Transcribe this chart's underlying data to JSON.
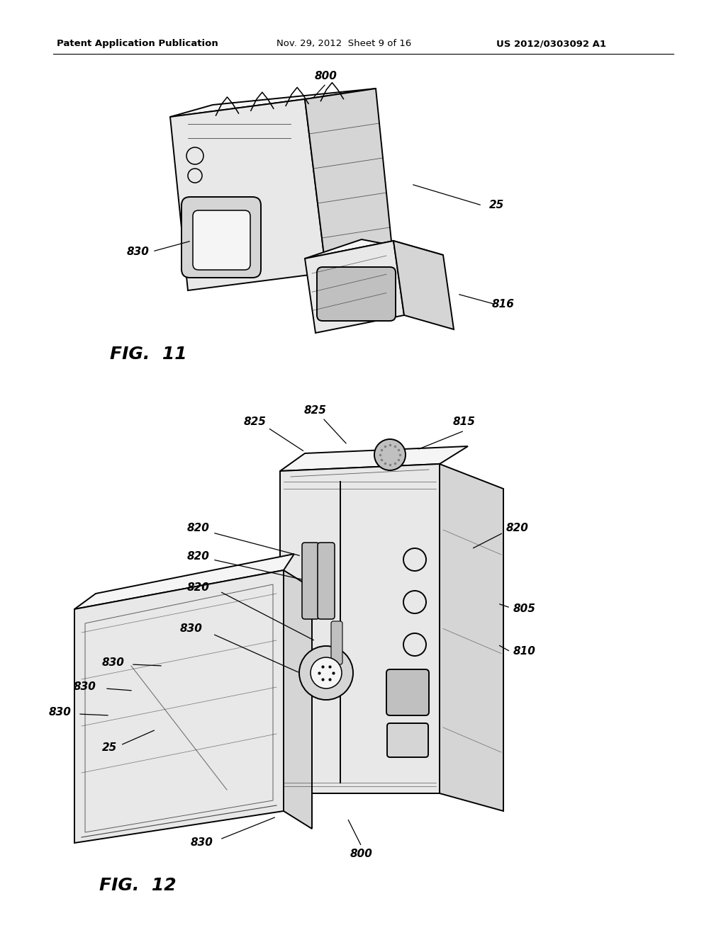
{
  "bg_color": "#ffffff",
  "header_left": "Patent Application Publication",
  "header_mid": "Nov. 29, 2012  Sheet 9 of 16",
  "header_right": "US 2012/0303092 A1",
  "fig11_label": "FIG.  11",
  "fig12_label": "FIG.  12",
  "line_color": "#000000",
  "face_color_light": "#f5f5f5",
  "face_color_mid": "#e8e8e8",
  "face_color_dark": "#d5d5d5",
  "face_color_darker": "#c0c0c0"
}
